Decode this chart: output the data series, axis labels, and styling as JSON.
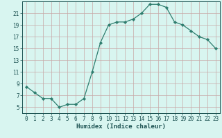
{
  "x": [
    0,
    1,
    2,
    3,
    4,
    5,
    6,
    7,
    8,
    9,
    10,
    11,
    12,
    13,
    14,
    15,
    16,
    17,
    18,
    19,
    20,
    21,
    22,
    23
  ],
  "y": [
    8.5,
    7.5,
    6.5,
    6.5,
    5.0,
    5.5,
    5.5,
    6.5,
    11.0,
    16.0,
    19.0,
    19.5,
    19.5,
    20.0,
    21.0,
    22.5,
    22.5,
    22.0,
    19.5,
    19.0,
    18.0,
    17.0,
    16.5,
    15.0
  ],
  "line_color": "#2e7d6e",
  "marker": "D",
  "marker_size": 2.2,
  "bg_color": "#d8f5f0",
  "grid_color_major": "#c8a8a8",
  "grid_color_minor": "#d8c0c0",
  "xlabel": "Humidex (Indice chaleur)",
  "ylim": [
    4,
    23
  ],
  "xlim": [
    -0.5,
    23.5
  ],
  "yticks": [
    5,
    7,
    9,
    11,
    13,
    15,
    17,
    19,
    21
  ],
  "xticks": [
    0,
    1,
    2,
    3,
    4,
    5,
    6,
    7,
    8,
    9,
    10,
    11,
    12,
    13,
    14,
    15,
    16,
    17,
    18,
    19,
    20,
    21,
    22,
    23
  ],
  "tick_fontsize": 5.5,
  "xlabel_fontsize": 6.5,
  "text_color": "#1a5050"
}
